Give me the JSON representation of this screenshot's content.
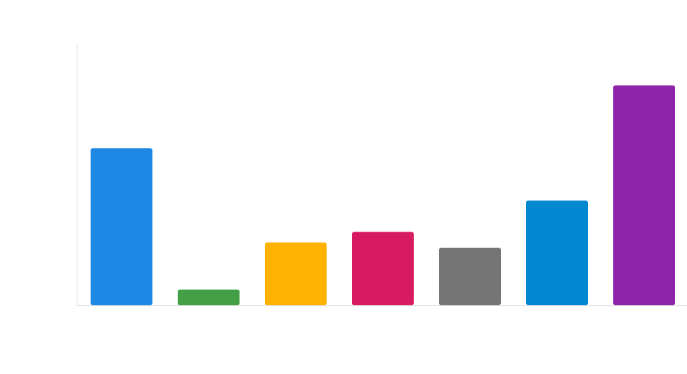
{
  "chart_data": {
    "type": "bar",
    "title": "",
    "xlabel": "",
    "ylabel": "",
    "ylim": [
      0,
      100
    ],
    "grid": false,
    "legend": "none",
    "bars": [
      {
        "value": 60,
        "color": "#1E88E5"
      },
      {
        "value": 6,
        "color": "#43A047"
      },
      {
        "value": 24,
        "color": "#FFB300"
      },
      {
        "value": 28,
        "color": "#D81B60"
      },
      {
        "value": 22,
        "color": "#757575"
      },
      {
        "value": 40,
        "color": "#0288D1"
      },
      {
        "value": 84,
        "color": "#8E24AA"
      }
    ],
    "axis_color": "#E0E0E0"
  }
}
